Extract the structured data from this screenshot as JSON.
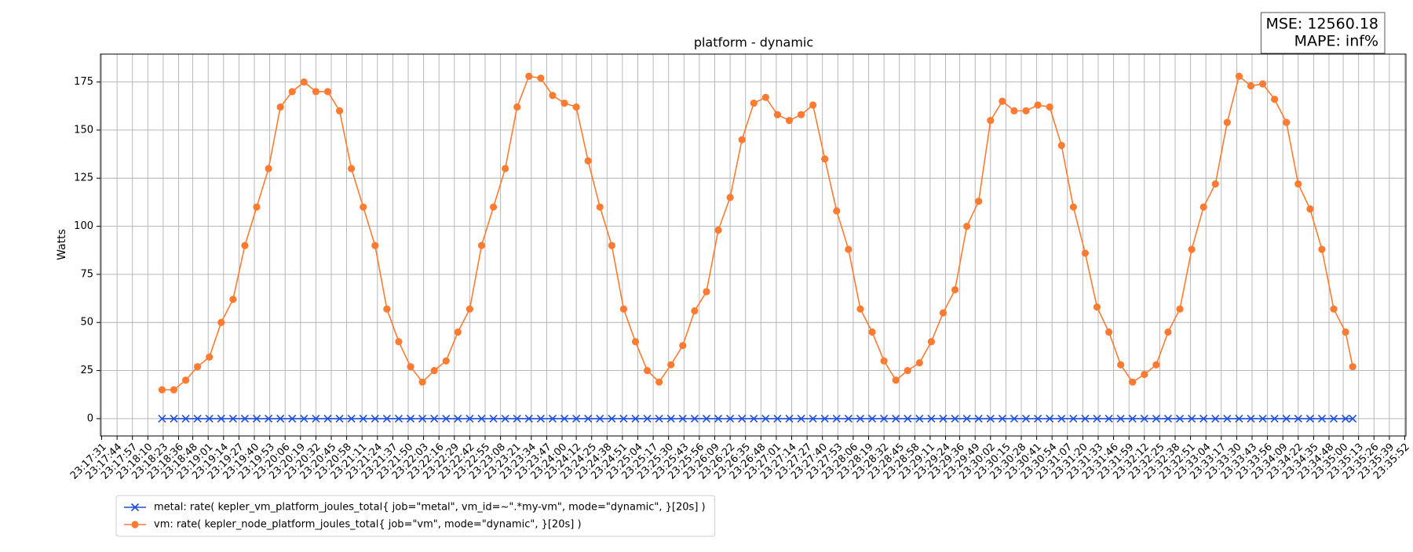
{
  "chart_data": {
    "type": "line",
    "title": "platform - dynamic",
    "y_label": "Watts",
    "annotation": [
      "MSE: 12560.18",
      "MAPE: inf%"
    ],
    "legend": "below",
    "grid": true,
    "xlim": [
      "23:17:30",
      "23:35:53"
    ],
    "ylim": [
      -9,
      189.5
    ],
    "yticks": [
      0,
      25,
      50,
      75,
      100,
      125,
      150,
      175
    ],
    "xticks": [
      "23:17:31",
      "23:17:44",
      "23:17:57",
      "23:18:10",
      "23:18:23",
      "23:18:36",
      "23:18:48",
      "23:19:01",
      "23:19:14",
      "23:19:27",
      "23:19:40",
      "23:19:53",
      "23:20:06",
      "23:20:19",
      "23:20:32",
      "23:20:45",
      "23:20:58",
      "23:21:11",
      "23:21:24",
      "23:21:37",
      "23:21:50",
      "23:22:03",
      "23:22:16",
      "23:22:29",
      "23:22:42",
      "23:22:55",
      "23:23:08",
      "23:23:21",
      "23:23:34",
      "23:23:47",
      "23:24:00",
      "23:24:12",
      "23:24:25",
      "23:24:38",
      "23:24:51",
      "23:25:04",
      "23:25:17",
      "23:25:30",
      "23:25:43",
      "23:25:56",
      "23:26:09",
      "23:26:22",
      "23:26:35",
      "23:26:48",
      "23:27:01",
      "23:27:14",
      "23:27:27",
      "23:27:40",
      "23:27:53",
      "23:28:06",
      "23:28:19",
      "23:28:32",
      "23:28:45",
      "23:28:58",
      "23:29:11",
      "23:29:24",
      "23:29:36",
      "23:29:49",
      "23:30:02",
      "23:30:15",
      "23:30:28",
      "23:30:41",
      "23:30:54",
      "23:31:07",
      "23:31:20",
      "23:31:33",
      "23:31:46",
      "23:31:59",
      "23:32:12",
      "23:32:25",
      "23:32:38",
      "23:32:51",
      "23:33:04",
      "23:33:17",
      "23:33:30",
      "23:33:43",
      "23:33:56",
      "23:34:09",
      "23:34:22",
      "23:34:35",
      "23:34:48",
      "23:35:00",
      "23:35:13",
      "23:35:26",
      "23:35:39",
      "23:35:52"
    ],
    "x": [
      "23:18:22",
      "23:18:32",
      "23:18:42",
      "23:18:52",
      "23:19:02",
      "23:19:12",
      "23:19:22",
      "23:19:32",
      "23:19:42",
      "23:19:52",
      "23:20:02",
      "23:20:12",
      "23:20:22",
      "23:20:32",
      "23:20:42",
      "23:20:52",
      "23:21:02",
      "23:21:12",
      "23:21:22",
      "23:21:32",
      "23:21:42",
      "23:21:52",
      "23:22:02",
      "23:22:12",
      "23:22:22",
      "23:22:32",
      "23:22:42",
      "23:22:52",
      "23:23:02",
      "23:23:12",
      "23:23:22",
      "23:23:32",
      "23:23:42",
      "23:23:52",
      "23:24:02",
      "23:24:12",
      "23:24:22",
      "23:24:32",
      "23:24:42",
      "23:24:52",
      "23:25:02",
      "23:25:12",
      "23:25:22",
      "23:25:32",
      "23:25:42",
      "23:25:52",
      "23:26:02",
      "23:26:12",
      "23:26:22",
      "23:26:32",
      "23:26:42",
      "23:26:52",
      "23:27:02",
      "23:27:12",
      "23:27:22",
      "23:27:32",
      "23:27:42",
      "23:27:52",
      "23:28:02",
      "23:28:12",
      "23:28:22",
      "23:28:32",
      "23:28:42",
      "23:28:52",
      "23:29:02",
      "23:29:12",
      "23:29:22",
      "23:29:32",
      "23:29:42",
      "23:29:52",
      "23:30:02",
      "23:30:12",
      "23:30:22",
      "23:30:32",
      "23:30:42",
      "23:30:52",
      "23:31:02",
      "23:31:12",
      "23:31:22",
      "23:31:32",
      "23:31:42",
      "23:31:52",
      "23:32:02",
      "23:32:12",
      "23:32:22",
      "23:32:32",
      "23:32:42",
      "23:32:52",
      "23:33:02",
      "23:33:12",
      "23:33:22",
      "23:33:32",
      "23:33:42",
      "23:33:52",
      "23:34:02",
      "23:34:12",
      "23:34:22",
      "23:34:32",
      "23:34:42",
      "23:34:52",
      "23:35:02",
      "23:35:08"
    ],
    "series": [
      {
        "name": "metal: rate( kepler_vm_platform_joules_total{ job=\"metal\", vm_id=~\".*my-vm\", mode=\"dynamic\", }[20s] )",
        "color": "#1f4fd6",
        "marker": "x",
        "values": [
          0,
          0,
          0,
          0,
          0,
          0,
          0,
          0,
          0,
          0,
          0,
          0,
          0,
          0,
          0,
          0,
          0,
          0,
          0,
          0,
          0,
          0,
          0,
          0,
          0,
          0,
          0,
          0,
          0,
          0,
          0,
          0,
          0,
          0,
          0,
          0,
          0,
          0,
          0,
          0,
          0,
          0,
          0,
          0,
          0,
          0,
          0,
          0,
          0,
          0,
          0,
          0,
          0,
          0,
          0,
          0,
          0,
          0,
          0,
          0,
          0,
          0,
          0,
          0,
          0,
          0,
          0,
          0,
          0,
          0,
          0,
          0,
          0,
          0,
          0,
          0,
          0,
          0,
          0,
          0,
          0,
          0,
          0,
          0,
          0,
          0,
          0,
          0,
          0,
          0,
          0,
          0,
          0,
          0,
          0,
          0,
          0,
          0,
          0,
          0,
          0,
          0
        ]
      },
      {
        "name": "vm: rate( kepler_node_platform_joules_total{ job=\"vm\", mode=\"dynamic\", }[20s] )",
        "color": "#ff7b32",
        "marker": "o",
        "values": [
          15,
          15,
          20,
          27,
          32,
          50,
          62,
          90,
          110,
          130,
          162,
          170,
          175,
          170,
          170,
          160,
          130,
          110,
          90,
          57,
          40,
          27,
          19,
          25,
          30,
          45,
          57,
          90,
          110,
          130,
          162,
          178,
          177,
          168,
          164,
          162,
          134,
          110,
          90,
          57,
          40,
          25,
          19,
          28,
          38,
          56,
          66,
          98,
          115,
          145,
          164,
          167,
          158,
          155,
          158,
          163,
          135,
          108,
          88,
          57,
          45,
          30,
          20,
          25,
          29,
          40,
          55,
          67,
          100,
          113,
          155,
          165,
          160,
          160,
          163,
          162,
          142,
          110,
          86,
          58,
          45,
          28,
          19,
          23,
          28,
          45,
          57,
          88,
          110,
          122,
          154,
          178,
          173,
          174,
          166,
          154,
          122,
          109,
          88,
          57,
          45,
          27
        ]
      }
    ]
  }
}
